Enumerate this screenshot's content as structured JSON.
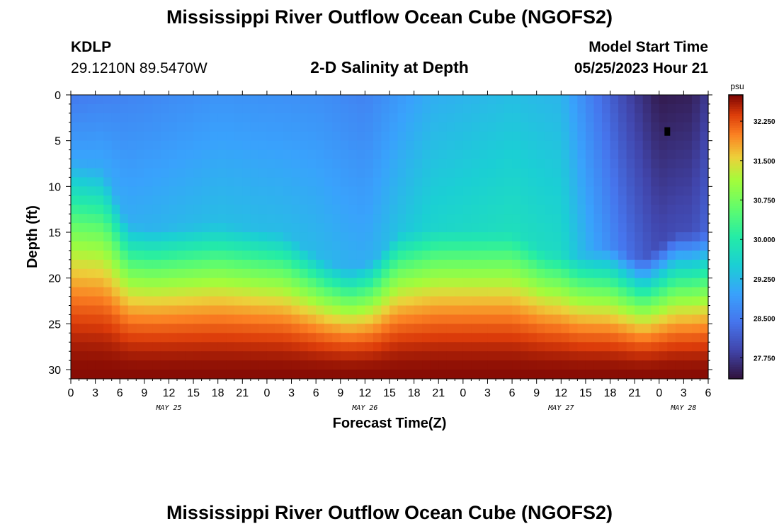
{
  "header": {
    "title": "Mississippi River Outflow Ocean Cube (NGOFS2)",
    "station": "KDLP",
    "coords": "29.1210N  89.5470W",
    "subtitle": "2-D Salinity at Depth",
    "model_start_label": "Model Start Time",
    "model_start_time": "05/25/2023 Hour 21"
  },
  "footer": {
    "title": "Mississippi River Outflow Ocean Cube (NGOFS2)"
  },
  "chart_data": {
    "type": "heatmap",
    "title": "2-D Salinity at Depth",
    "xlabel": "Forecast Time(Z)",
    "ylabel": "Depth (ft)",
    "x_range_hours": [
      0,
      78
    ],
    "y_range_ft": [
      0,
      31
    ],
    "y_inverted": true,
    "x_tick_labels": [
      "0",
      "3",
      "6",
      "9",
      "12",
      "15",
      "18",
      "21",
      "0",
      "3",
      "6",
      "9",
      "12",
      "15",
      "18",
      "21",
      "0",
      "3",
      "6",
      "9",
      "12",
      "15",
      "18",
      "21",
      "0",
      "3",
      "6"
    ],
    "y_ticks": [
      0,
      5,
      10,
      15,
      20,
      25,
      30
    ],
    "date_labels": [
      {
        "label": "MAY 25",
        "hour": 12
      },
      {
        "label": "MAY 26",
        "hour": 36
      },
      {
        "label": "MAY 27",
        "hour": 60
      },
      {
        "label": "MAY 28",
        "hour": 75
      }
    ],
    "colorbar": {
      "unit": "psu",
      "min": 27.35,
      "max": 32.75,
      "ticks": [
        27.75,
        28.5,
        29.25,
        30.0,
        30.75,
        31.5,
        32.25
      ],
      "tick_labels": [
        "27.750",
        "28.500",
        "29.250",
        "30.000",
        "30.750",
        "31.500",
        "32.250"
      ]
    },
    "halocline_depth_ft": [
      {
        "hour": 0,
        "depth": 9
      },
      {
        "hour": 4,
        "depth": 10
      },
      {
        "hour": 7,
        "depth": 16
      },
      {
        "hour": 10,
        "depth": 16.5
      },
      {
        "hour": 18,
        "depth": 16
      },
      {
        "hour": 26,
        "depth": 17
      },
      {
        "hour": 31,
        "depth": 20
      },
      {
        "hour": 34,
        "depth": 21
      },
      {
        "hour": 37,
        "depth": 20
      },
      {
        "hour": 40,
        "depth": 17
      },
      {
        "hour": 45,
        "depth": 16.5
      },
      {
        "hour": 54,
        "depth": 17
      },
      {
        "hour": 58,
        "depth": 19
      },
      {
        "hour": 62,
        "depth": 19.5
      },
      {
        "hour": 66,
        "depth": 18.5
      },
      {
        "hour": 70,
        "depth": 20
      },
      {
        "hour": 74,
        "depth": 17
      },
      {
        "hour": 78,
        "depth": 17
      }
    ],
    "surface_salinity_psu": [
      {
        "hour": 0,
        "value": 28.5
      },
      {
        "hour": 6,
        "value": 28.6
      },
      {
        "hour": 18,
        "value": 28.8
      },
      {
        "hour": 30,
        "value": 28.75
      },
      {
        "hour": 36,
        "value": 28.6
      },
      {
        "hour": 44,
        "value": 29.1
      },
      {
        "hour": 54,
        "value": 29.3
      },
      {
        "hour": 60,
        "value": 29.2
      },
      {
        "hour": 64,
        "value": 28.5
      },
      {
        "hour": 68,
        "value": 27.9
      },
      {
        "hour": 72,
        "value": 27.45
      },
      {
        "hour": 76,
        "value": 27.5
      },
      {
        "hour": 78,
        "value": 27.8
      }
    ],
    "bottom_salinity_psu": 32.7,
    "min_marker": {
      "hour": 73,
      "depth": 4
    }
  }
}
